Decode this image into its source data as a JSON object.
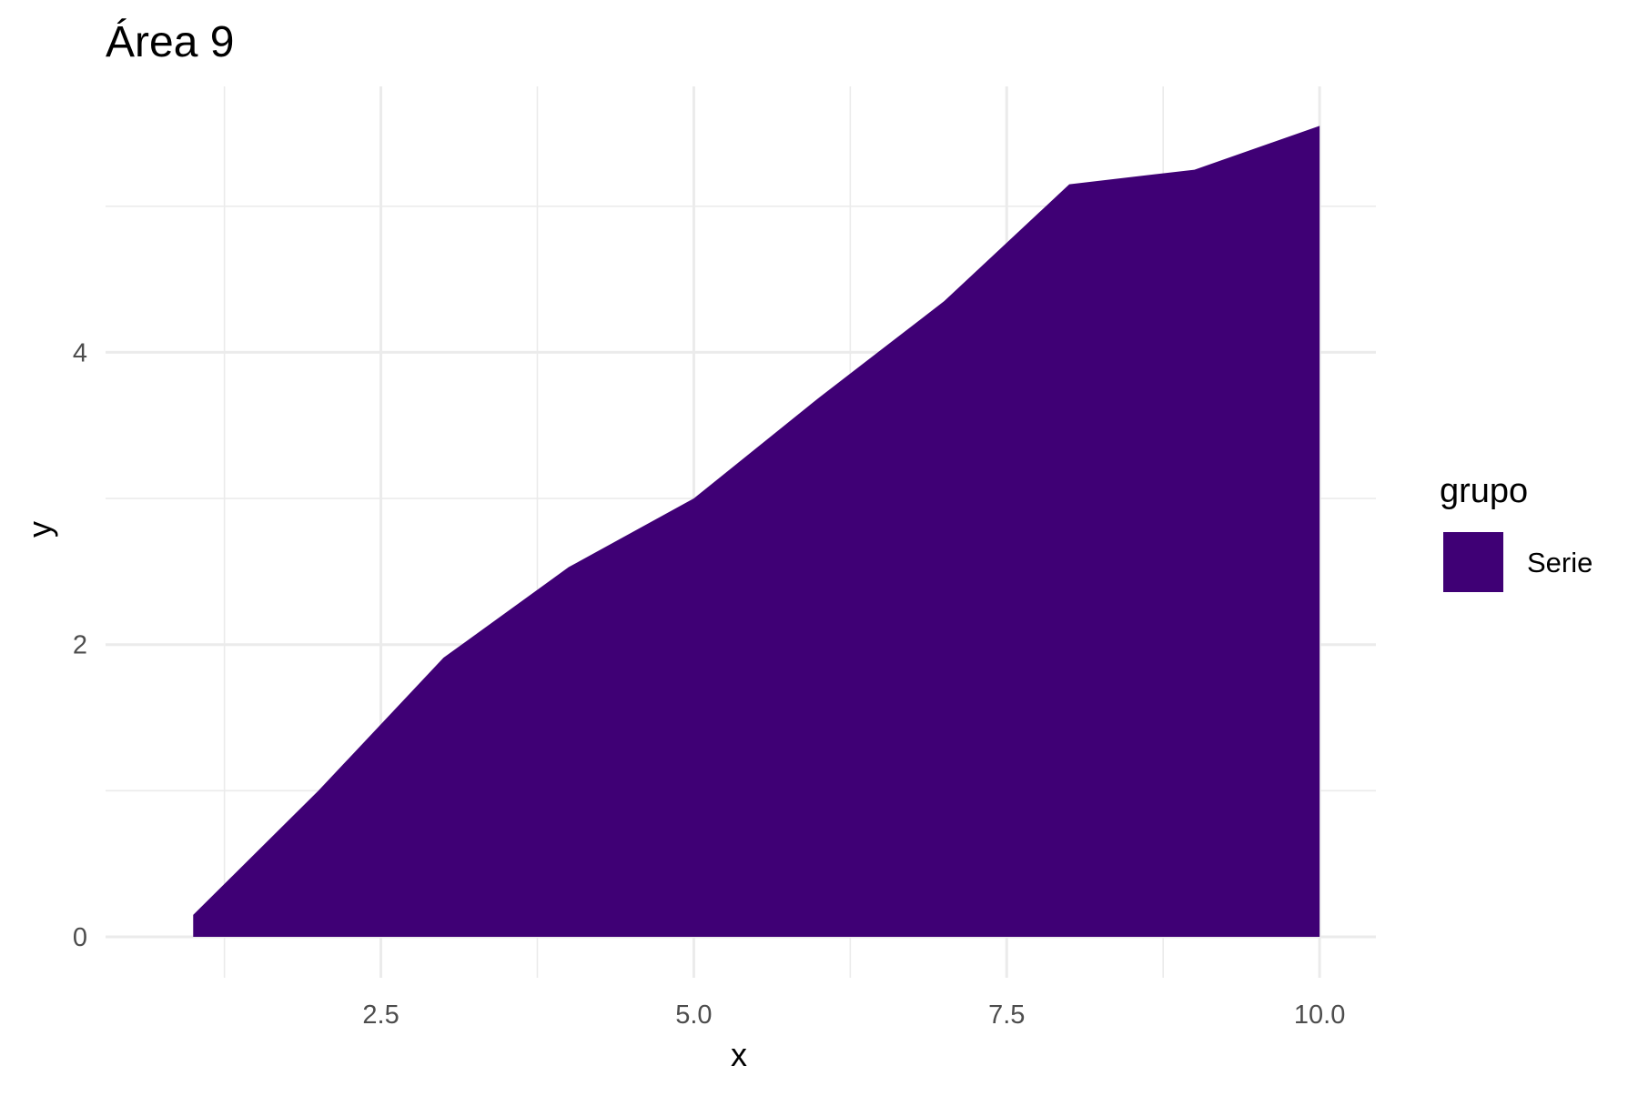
{
  "chart_data": {
    "type": "area",
    "title": "Área 9",
    "xlabel": "x",
    "ylabel": "y",
    "x": [
      1,
      2,
      3,
      4,
      5,
      6,
      7,
      8,
      9,
      10
    ],
    "series": [
      {
        "name": "Serie",
        "color": "#3f0075",
        "values": [
          0.15,
          1.0,
          1.91,
          2.53,
          3.0,
          3.69,
          4.35,
          5.15,
          5.25,
          5.55
        ]
      }
    ],
    "xlim": [
      0.3,
      10.45
    ],
    "ylim": [
      -0.28,
      5.82
    ],
    "x_ticks": [
      2.5,
      5.0,
      7.5,
      10.0
    ],
    "x_tick_labels": [
      "2.5",
      "5.0",
      "7.5",
      "10.0"
    ],
    "x_minor_ticks": [
      1.25,
      3.75,
      6.25,
      8.75
    ],
    "y_ticks": [
      0,
      2,
      4
    ],
    "y_tick_labels": [
      "0",
      "2",
      "4"
    ],
    "y_minor_ticks": [
      1,
      3,
      5
    ],
    "grid": true,
    "legend": {
      "title": "grupo",
      "position": "right",
      "entries": [
        {
          "label": "Serie",
          "color": "#3f0075"
        }
      ]
    }
  }
}
